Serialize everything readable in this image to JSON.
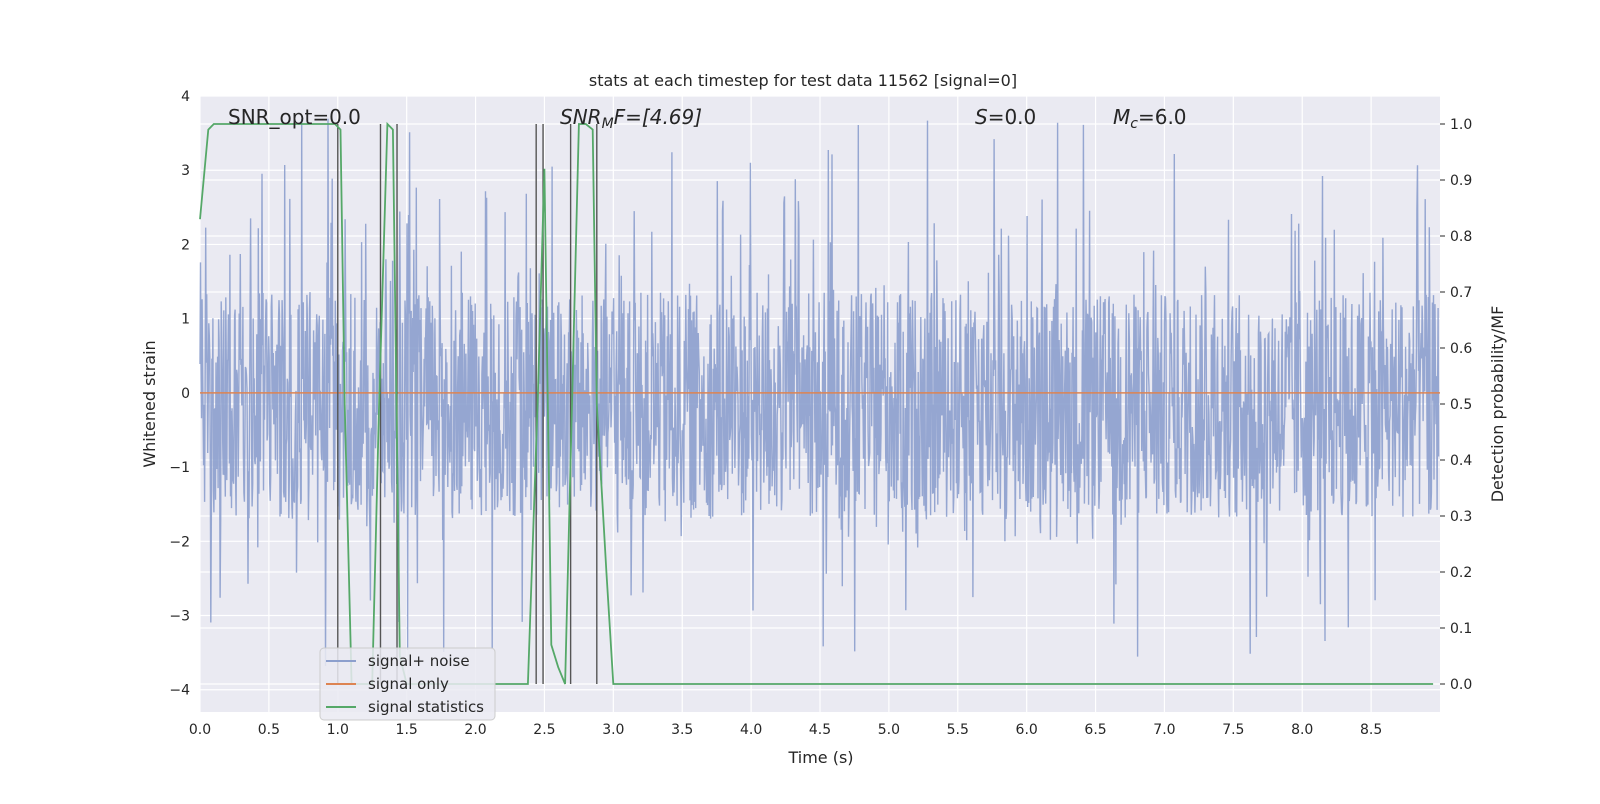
{
  "chart_data": {
    "type": "line",
    "title": "stats at each timestep for test data 11562 [signal=0]",
    "xlabel": "Time (s)",
    "ylabel_left": "Whitened strain",
    "ylabel_right": "Detection probability/MF",
    "xlim": [
      0.0,
      9.0
    ],
    "ylim_left": [
      -4.3,
      4.0
    ],
    "ylim_right": [
      -0.05,
      1.05
    ],
    "x_ticks": [
      0.0,
      0.5,
      1.0,
      1.5,
      2.0,
      2.5,
      3.0,
      3.5,
      4.0,
      4.5,
      5.0,
      5.5,
      6.0,
      6.5,
      7.0,
      7.5,
      8.0,
      8.5
    ],
    "x_tick_labels": [
      "0.0",
      "0.5",
      "1.0",
      "1.5",
      "2.0",
      "2.5",
      "3.0",
      "3.5",
      "4.0",
      "4.5",
      "5.0",
      "5.5",
      "6.0",
      "6.5",
      "7.0",
      "7.5",
      "8.0",
      "8.5"
    ],
    "y_left_ticks": [
      4,
      3,
      2,
      1,
      0,
      -1,
      -2,
      -3,
      -4
    ],
    "y_left_tick_labels": [
      "4",
      "3",
      "2",
      "1",
      "0",
      "−1",
      "−2",
      "−3",
      "−4"
    ],
    "y_right_ticks": [
      1.0,
      0.9,
      0.8,
      0.7,
      0.6,
      0.5,
      0.4,
      0.3,
      0.2,
      0.1,
      0.0
    ],
    "y_right_tick_labels": [
      "1.0",
      "0.9",
      "0.8",
      "0.7",
      "0.6",
      "0.5",
      "0.4",
      "0.3",
      "0.2",
      "0.1",
      "0.0"
    ],
    "grid": true,
    "legend_position": "lower-left",
    "annotations": {
      "snr_opt": "SNR_opt=0.0",
      "snr_mf_main": "SNR",
      "snr_mf_sub": "M",
      "snr_mf_rest": "F=[4.69]",
      "s_main": "S",
      "s_rest": "=0.0",
      "mc_main": "M",
      "mc_sub": "c",
      "mc_rest": "=6.0"
    },
    "series": [
      {
        "name": "signal+ noise",
        "axis": "left",
        "color": "#8c9fcd",
        "kind": "noise",
        "envelope_core": [
          -1.7,
          1.35
        ],
        "envelope_peak": [
          -3.7,
          3.7
        ]
      },
      {
        "name": "signal only",
        "axis": "left",
        "color": "#dd8452",
        "x": [
          0.0,
          9.0
        ],
        "y": [
          0.0,
          0.0
        ]
      },
      {
        "name": "signal statistics",
        "axis": "right",
        "color": "#55a868",
        "x": [
          0.0,
          0.06,
          0.1,
          0.2,
          0.3,
          0.5,
          0.7,
          0.9,
          0.98,
          1.02,
          1.05,
          1.1,
          1.2,
          1.25,
          1.3,
          1.36,
          1.4,
          1.45,
          1.5,
          1.6,
          1.8,
          2.0,
          2.2,
          2.38,
          2.45,
          2.5,
          2.55,
          2.6,
          2.65,
          2.7,
          2.75,
          2.8,
          2.85,
          2.88,
          2.95,
          3.0,
          3.2,
          3.5,
          4.0,
          5.0,
          6.0,
          7.0,
          8.0,
          8.95
        ],
        "y": [
          0.83,
          0.99,
          1.0,
          1.0,
          1.0,
          1.0,
          1.0,
          1.0,
          1.0,
          0.99,
          0.5,
          0.0,
          0.0,
          0.0,
          0.5,
          1.0,
          0.99,
          0.05,
          0.0,
          0.0,
          0.0,
          0.0,
          0.0,
          0.0,
          0.5,
          0.92,
          0.07,
          0.03,
          0.0,
          0.5,
          1.0,
          1.0,
          0.99,
          0.5,
          0.2,
          0.0,
          0.0,
          0.0,
          0.0,
          0.0,
          0.0,
          0.0,
          0.0,
          0.0
        ]
      }
    ],
    "vertical_markers": [
      1.0,
      1.31,
      1.43,
      2.44,
      2.49,
      2.69,
      2.88
    ]
  }
}
